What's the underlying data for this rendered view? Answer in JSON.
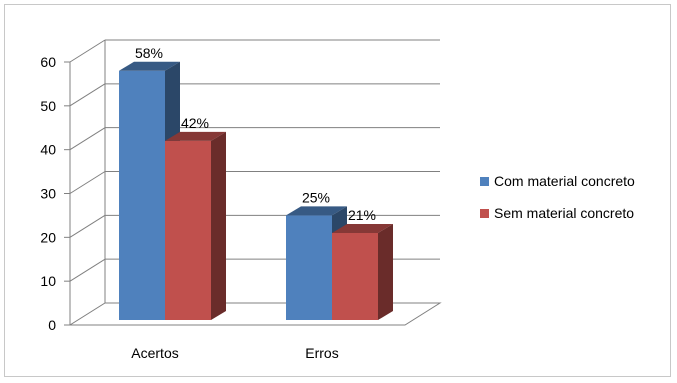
{
  "chart_data": {
    "type": "bar",
    "categories": [
      "Acertos",
      "Erros"
    ],
    "series": [
      {
        "name": "Com material concreto",
        "values": [
          58,
          25
        ],
        "labels": [
          "58%",
          "25%"
        ],
        "color": "#4f81bd"
      },
      {
        "name": "Sem material concreto",
        "values": [
          42,
          21
        ],
        "labels": [
          "42%",
          "21%"
        ],
        "color": "#c0504d"
      }
    ],
    "ylim": [
      0,
      60
    ],
    "yticks": [
      0,
      10,
      20,
      30,
      40,
      50,
      60
    ],
    "grid": true,
    "legend": "right",
    "style": "3d-clustered-column"
  }
}
